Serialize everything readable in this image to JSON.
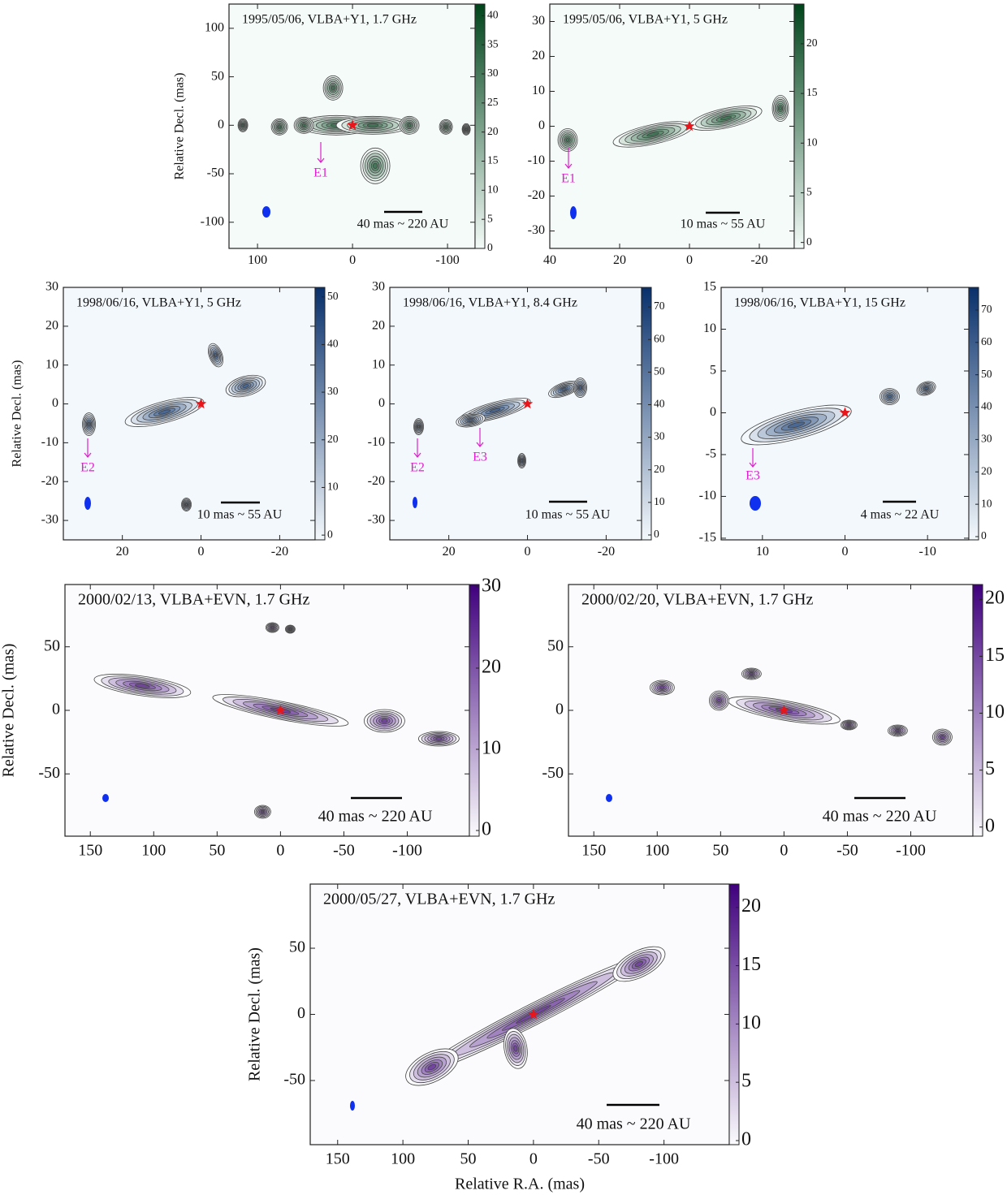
{
  "chart_data": [
    {
      "type": "contour",
      "title": "1995/05/06, VLBA+Y1, 1.7 GHz",
      "ylabel": "Relative Decl. (mas)",
      "xlim": [
        130,
        -129
      ],
      "ylim": [
        -127,
        125
      ],
      "xticks": [
        100,
        0,
        -100
      ],
      "yticks": [
        100,
        50,
        0,
        -50,
        -100
      ],
      "colorbar": {
        "lim": [
          0,
          42
        ],
        "ticks": [
          0,
          5,
          10,
          15,
          20,
          25,
          30,
          35,
          40
        ]
      },
      "colormap": [
        "#f4fbf8",
        "#00441b"
      ],
      "annotations": [
        "E1"
      ],
      "scale_label": "40 mas ~ 220 AU"
    },
    {
      "type": "contour",
      "title": "1995/05/06, VLBA+Y1, 5 GHz",
      "xlim": [
        40,
        -30
      ],
      "ylim": [
        -35,
        35
      ],
      "xticks": [
        40,
        20,
        0,
        -20
      ],
      "yticks": [
        30,
        20,
        10,
        0,
        -10,
        -20,
        -30
      ],
      "colorbar": {
        "lim": [
          -0.6,
          24
        ],
        "ticks": [
          0,
          5,
          10,
          15,
          20
        ]
      },
      "colormap": [
        "#f4fbf8",
        "#00441b"
      ],
      "annotations": [
        "E1"
      ],
      "scale_label": "10 mas ~ 55 AU"
    },
    {
      "type": "contour",
      "title": "1998/06/16, VLBA+Y1, 5 GHz",
      "ylabel": "Relative Decl. (mas)",
      "xlim": [
        35,
        -29
      ],
      "ylim": [
        -35,
        30
      ],
      "xticks": [
        20,
        0,
        -20
      ],
      "yticks": [
        30,
        20,
        10,
        0,
        -10,
        -20,
        -30
      ],
      "colorbar": {
        "lim": [
          -1,
          52
        ],
        "ticks": [
          0,
          10,
          20,
          30,
          40,
          50
        ]
      },
      "colormap": [
        "#f3f8fc",
        "#08306b"
      ],
      "annotations": [
        "E2"
      ],
      "scale_label": "10 mas ~ 55 AU"
    },
    {
      "type": "contour",
      "title": "1998/06/16, VLBA+Y1, 8.4 GHz",
      "xlim": [
        35,
        -29
      ],
      "ylim": [
        -35,
        30
      ],
      "xticks": [
        20,
        0,
        -20
      ],
      "yticks": [
        30,
        20,
        10,
        0,
        -10,
        -20,
        -30
      ],
      "colorbar": {
        "lim": [
          -1.5,
          76
        ],
        "ticks": [
          0,
          10,
          20,
          30,
          40,
          50,
          60,
          70
        ]
      },
      "colormap": [
        "#f3f8fc",
        "#08306b"
      ],
      "annotations": [
        "E2",
        "E3"
      ],
      "scale_label": "10 mas ~ 55 AU"
    },
    {
      "type": "contour",
      "title": "1998/06/16, VLBA+Y1, 15 GHz",
      "xlim": [
        15,
        -15
      ],
      "ylim": [
        -15.2,
        15
      ],
      "xticks": [
        10,
        0,
        -10
      ],
      "yticks": [
        15,
        10,
        5,
        0,
        -5,
        -10,
        -15
      ],
      "colorbar": {
        "lim": [
          -1,
          77
        ],
        "ticks": [
          0,
          10,
          20,
          30,
          40,
          50,
          60,
          70
        ]
      },
      "colormap": [
        "#f3f8fc",
        "#08306b"
      ],
      "annotations": [
        "E3"
      ],
      "scale_label": "4 mas ~ 22 AU"
    },
    {
      "type": "contour",
      "title": "2000/02/13, VLBA+EVN, 1.7 GHz",
      "ylabel": "Relative Decl. (mas)",
      "xlim": [
        170,
        -149
      ],
      "ylim": [
        -99,
        99
      ],
      "xticks": [
        150,
        100,
        50,
        0,
        -50,
        -100
      ],
      "yticks": [
        50,
        0,
        -50
      ],
      "colorbar": {
        "lim": [
          -0.7,
          30.3
        ],
        "ticks": [
          0,
          10,
          20,
          30
        ]
      },
      "colormap": [
        "#fbfbfd",
        "#3f007d"
      ],
      "annotations": [],
      "scale_label": "40 mas ~ 220 AU"
    },
    {
      "type": "contour",
      "title": "2000/02/20, VLBA+EVN, 1.7 GHz",
      "xlim": [
        170,
        -149
      ],
      "ylim": [
        -99,
        99
      ],
      "xticks": [
        150,
        100,
        50,
        0,
        -50,
        -100
      ],
      "yticks": [
        50,
        0,
        -50
      ],
      "colorbar": {
        "lim": [
          -0.8,
          21.3
        ],
        "ticks": [
          0,
          5,
          10,
          15,
          20
        ]
      },
      "colormap": [
        "#fbfbfd",
        "#3f007d"
      ],
      "annotations": [],
      "scale_label": "40 mas ~ 220 AU"
    },
    {
      "type": "contour",
      "title": "2000/05/27, VLBA+EVN, 1.7 GHz",
      "ylabel": "Relative Decl. (mas)",
      "xlabel": "Relative R.A. (mas)",
      "xlim": [
        171,
        -150
      ],
      "ylim": [
        -98.5,
        98.5
      ],
      "xticks": [
        150,
        100,
        50,
        0,
        -50,
        -100
      ],
      "yticks": [
        50,
        0,
        -50
      ],
      "colorbar": {
        "lim": [
          -0.35,
          22
        ],
        "ticks": [
          0,
          5,
          10,
          15,
          20
        ]
      },
      "colormap": [
        "#fbfbfd",
        "#3f007d"
      ],
      "annotations": [],
      "scale_label": "40 mas ~ 220 AU"
    }
  ]
}
